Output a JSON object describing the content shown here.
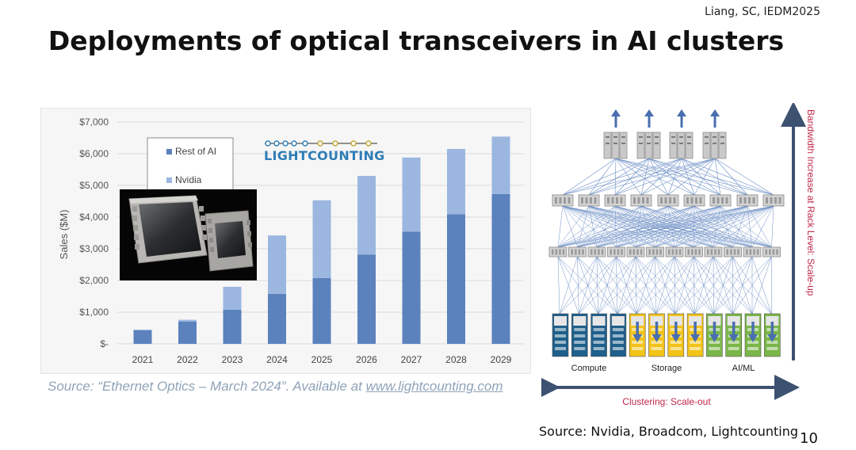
{
  "slide": {
    "citation": "Liang, SC, IEDM2025",
    "title": "Deployments of optical transceivers in AI clusters",
    "page_number": "10",
    "bottom_source": "Source: Nvidia, Broadcom, Lightcounting"
  },
  "chart_data": {
    "type": "bar",
    "stacked": true,
    "categories": [
      "2021",
      "2022",
      "2023",
      "2024",
      "2025",
      "2026",
      "2027",
      "2028",
      "2029"
    ],
    "series": [
      {
        "name": "Rest of AI",
        "color": "#5b82bd",
        "values": [
          430,
          700,
          1080,
          1580,
          2080,
          2820,
          3540,
          4090,
          4730
        ]
      },
      {
        "name": "Nvidia",
        "color": "#9bb7e0",
        "values": [
          20,
          60,
          720,
          1840,
          2450,
          2480,
          2340,
          2060,
          1810
        ]
      }
    ],
    "ylabel": "Sales ($M)",
    "ylim": [
      0,
      7000
    ],
    "yticks": [
      0,
      1000,
      2000,
      3000,
      4000,
      5000,
      6000,
      7000
    ],
    "ytick_labels": [
      "$-",
      "$1,000",
      "$2,000",
      "$3,000",
      "$4,000",
      "$5,000",
      "$6,000",
      "$7,000"
    ],
    "grid": true,
    "legend_placement": "top-left",
    "logo_text": "LIGHTCOUNTING",
    "source_prefix": "Source: “Ethernet Optics – March 2024”. Available at ",
    "source_link": "www.lightcounting.com"
  },
  "diagram": {
    "labels": {
      "compute": "Compute",
      "storage": "Storage",
      "aiml": "AI/ML",
      "scale_out": "Clustering: Scale-out",
      "scale_up": "Bandwidth Increase at Rack Level: Scale-up"
    },
    "colors": {
      "compute": "#1f5f8b",
      "storage": "#f2c318",
      "aiml": "#7ab648",
      "arrow": "#4a6fb0",
      "axis_arrow": "#3d5170",
      "scale_label": "#c0294a",
      "links": "#6d8fc6"
    }
  }
}
